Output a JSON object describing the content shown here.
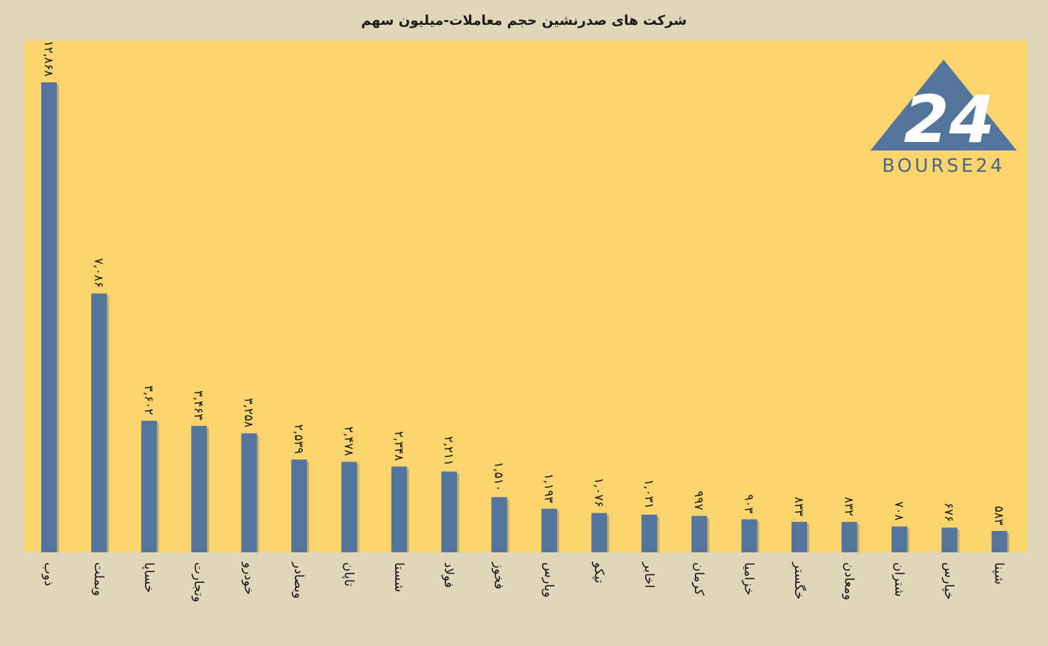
{
  "chart_data": {
    "type": "bar",
    "title": "شرکت های صدرنشین حجم معاملات-میلیون سهم",
    "categories": [
      "ذوب",
      "وبملت",
      "خساپا",
      "وتجارت",
      "خودرو",
      "وبصادر",
      "تاپان",
      "شستا",
      "فولاد",
      "فخوز",
      "وپارس",
      "تپکو",
      "اخابر",
      "کرمان",
      "خزامیا",
      "خگستر",
      "ومعادن",
      "شتران",
      "خپارس",
      "شپنا"
    ],
    "values": [
      12868,
      7086,
      3602,
      3463,
      3258,
      2539,
      2478,
      2348,
      2211,
      1510,
      1193,
      1076,
      1031,
      997,
      903,
      833,
      832,
      708,
      676,
      583
    ],
    "value_labels": [
      "۱۲,۸۶۸",
      "۷,۰۸۶",
      "۳,۶۰۲",
      "۳,۴۶۳",
      "۳,۲۵۸",
      "۲,۵۳۹",
      "۲,۴۷۸",
      "۲,۳۴۸",
      "۲,۲۱۱",
      "۱,۵۱۰",
      "۱,۱۹۳",
      "۱,۰۷۶",
      "۱,۰۳۱",
      "۹۹۷",
      "۹۰۳",
      "۸۳۳",
      "۸۳۲",
      "۷۰۸",
      "۶۷۶",
      "۵۸۳"
    ],
    "xlabel": "",
    "ylabel": "",
    "ylim": [
      0,
      12868
    ],
    "grid": false,
    "legend": "none",
    "colors": {
      "bar": "#53759c",
      "plot_background": "#fcd46e",
      "page_background": "#e0d6ba"
    }
  },
  "logo": {
    "text": "BOURSE24",
    "mark": "24",
    "color": "#53759c"
  }
}
